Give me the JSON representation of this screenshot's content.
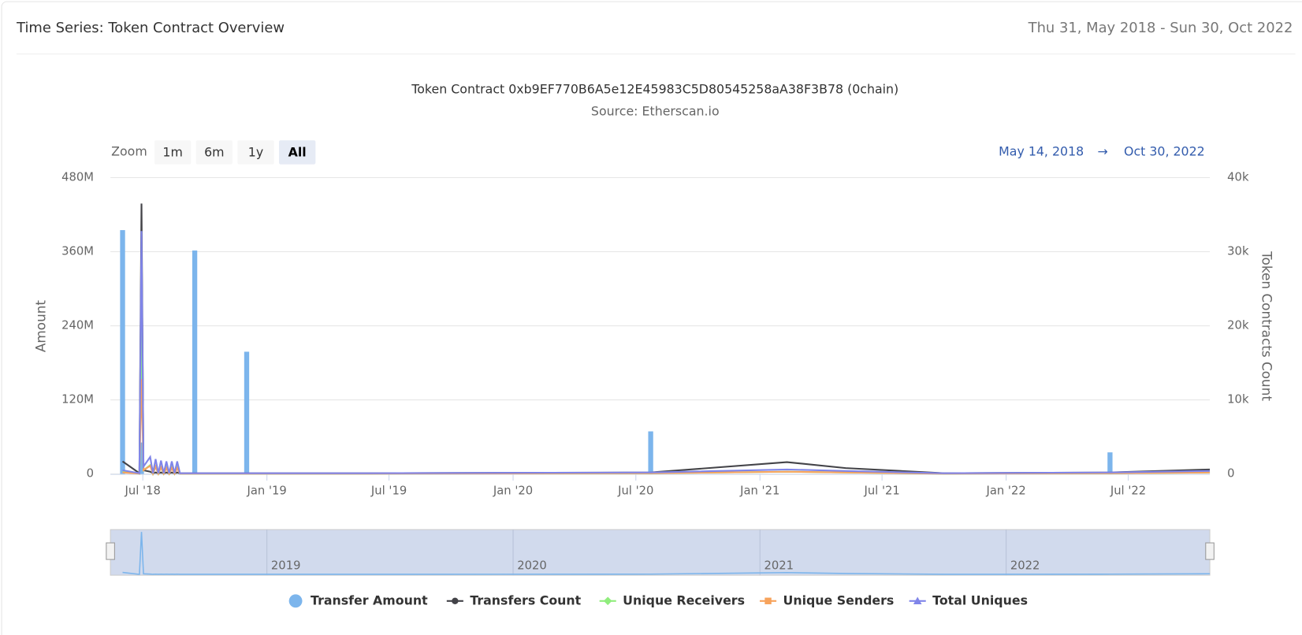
{
  "header": {
    "title": "Time Series: Token Contract Overview",
    "date_range": "Thu 31, May 2018 - Sun 30, Oct 2022"
  },
  "zoom": {
    "label": "Zoom",
    "buttons": [
      "1m",
      "6m",
      "1y",
      "All"
    ],
    "selected": "All"
  },
  "range": {
    "from": "May 14, 2018",
    "separator": "→",
    "to": "Oct 30, 2022"
  },
  "navigator": {
    "ticks": [
      "2019",
      "2020",
      "2021",
      "2022"
    ]
  },
  "chart_data": {
    "type": "bar-line",
    "title": "Token Contract 0xb9EF770B6A5e12E45983C5D80545258aA38F3B78 (0chain)",
    "subtitle": "Source: Etherscan.io",
    "y_label": "Amount",
    "y2_label": "Token Contracts Count",
    "xlim": [
      "2018-05-14",
      "2022-10-30"
    ],
    "xticks": [
      {
        "value": "2018-07-01",
        "label": "Jul '18"
      },
      {
        "value": "2019-01-01",
        "label": "Jan '19"
      },
      {
        "value": "2019-07-01",
        "label": "Jul '19"
      },
      {
        "value": "2020-01-01",
        "label": "Jan '20"
      },
      {
        "value": "2020-07-01",
        "label": "Jul '20"
      },
      {
        "value": "2021-01-01",
        "label": "Jan '21"
      },
      {
        "value": "2021-07-01",
        "label": "Jul '21"
      },
      {
        "value": "2022-01-01",
        "label": "Jan '22"
      },
      {
        "value": "2022-07-01",
        "label": "Jul '22"
      }
    ],
    "ylim": [
      0,
      480000000
    ],
    "yticks": [
      0,
      {
        "value": 120000000,
        "label": "120M"
      },
      {
        "value": 240000000,
        "label": "240M"
      },
      {
        "value": 360000000,
        "label": "360M"
      },
      {
        "value": 480000000,
        "label": "480M"
      }
    ],
    "y2lim": [
      0,
      40000
    ],
    "y2ticks": [
      0,
      {
        "value": 10000,
        "label": "10k"
      },
      {
        "value": 20000,
        "label": "20k"
      },
      {
        "value": 30000,
        "label": "30k"
      },
      {
        "value": 40000,
        "label": "40k"
      }
    ],
    "grid": true,
    "x": [
      "2018-06-01",
      "2018-06-26",
      "2018-06-29",
      "2018-07-02",
      "2018-07-12",
      "2018-07-16",
      "2018-07-20",
      "2018-07-24",
      "2018-07-28",
      "2018-08-01",
      "2018-08-05",
      "2018-08-09",
      "2018-08-13",
      "2018-08-17",
      "2018-08-21",
      "2018-08-25",
      "2018-09-16",
      "2018-12-02",
      "2019-06-01",
      "2020-07-23",
      "2021-02-10",
      "2021-05-08",
      "2021-10-01",
      "2022-06-04",
      "2022-10-30"
    ],
    "series": [
      {
        "name": "Transfer Amount",
        "kind": "bar",
        "marker": "circle",
        "color": "#7cb5ec",
        "values": [
          395000000,
          null,
          51000000,
          null,
          null,
          null,
          null,
          null,
          null,
          null,
          null,
          null,
          null,
          null,
          null,
          null,
          362000000,
          198000000,
          null,
          69000000,
          null,
          null,
          null,
          35000000,
          null
        ]
      },
      {
        "name": "Transfers Count",
        "kind": "line",
        "axis": "y2",
        "marker": "circle",
        "color": "#434348",
        "values": [
          1700,
          100,
          36500,
          500,
          300,
          100,
          200,
          100,
          200,
          100,
          200,
          100,
          200,
          100,
          200,
          100,
          100,
          100,
          100,
          200,
          1600,
          800,
          100,
          200,
          600
        ]
      },
      {
        "name": "Unique Receivers",
        "kind": "line",
        "axis": "y2",
        "marker": "diamond",
        "color": "#90ed7d",
        "values": [
          300,
          50,
          20000,
          500,
          1200,
          50,
          1000,
          50,
          900,
          50,
          900,
          50,
          900,
          50,
          900,
          50,
          50,
          50,
          50,
          100,
          300,
          200,
          50,
          100,
          200
        ]
      },
      {
        "name": "Unique Senders",
        "kind": "line",
        "axis": "y2",
        "marker": "square",
        "color": "#f7a35c",
        "values": [
          200,
          50,
          12800,
          500,
          1100,
          50,
          1000,
          50,
          900,
          50,
          800,
          50,
          800,
          50,
          800,
          50,
          50,
          50,
          50,
          100,
          300,
          200,
          50,
          100,
          200
        ]
      },
      {
        "name": "Total Uniques",
        "kind": "line",
        "axis": "y2",
        "marker": "triangle",
        "color": "#8085e9",
        "values": [
          500,
          100,
          32800,
          1000,
          2300,
          100,
          2000,
          100,
          1800,
          100,
          1700,
          100,
          1700,
          100,
          1700,
          100,
          100,
          100,
          100,
          200,
          600,
          400,
          100,
          200,
          400
        ]
      }
    ]
  }
}
